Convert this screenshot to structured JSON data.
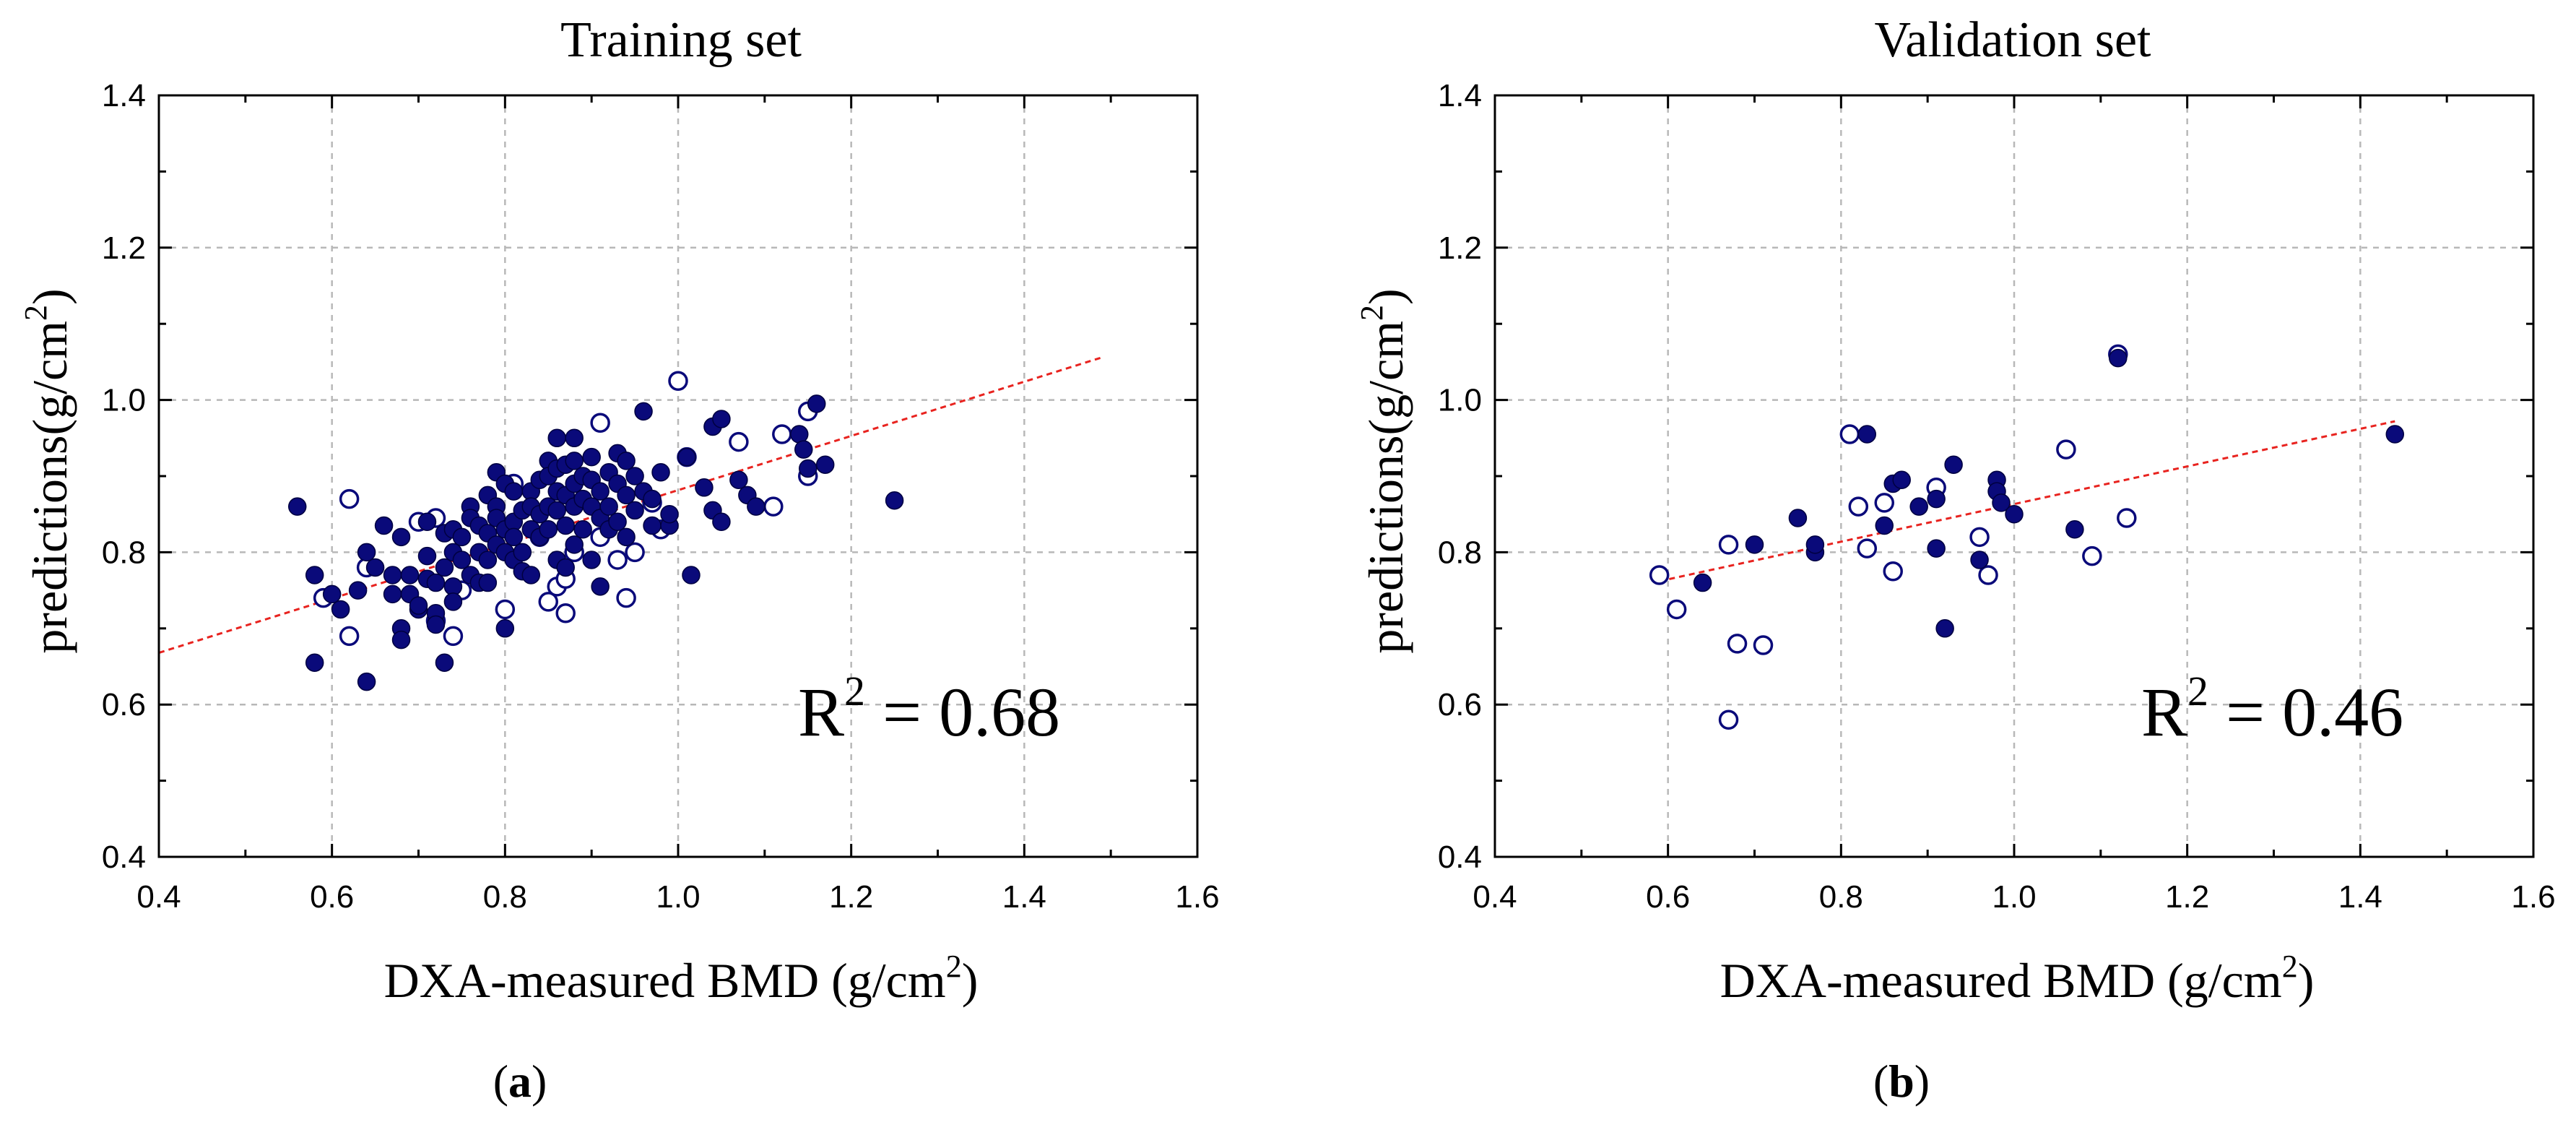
{
  "chart_data": [
    {
      "type": "scatter",
      "panel": "a",
      "title": "Training set",
      "xlabel_main": "DXA-measured BMD (g/cm",
      "xlabel_sup": "2",
      "xlabel_end": ")",
      "ylabel_main": "predictions(g/cm",
      "ylabel_sup": "2",
      "ylabel_end": ")",
      "xlim": [
        0.4,
        1.6
      ],
      "ylim": [
        0.4,
        1.4
      ],
      "xticks": [
        "0.4",
        "0.6",
        "0.8",
        "1.0",
        "1.2",
        "1.4",
        "1.6"
      ],
      "yticks": [
        "0.4",
        "0.6",
        "0.8",
        "1.0",
        "1.2",
        "1.4"
      ],
      "r2_prefix": "R",
      "r2_sup": "2",
      "r2_value": " = 0.68",
      "caption_open": "(",
      "caption_letter": "a",
      "caption_close": ")",
      "fit_line": [
        [
          0.4,
          0.668
        ],
        [
          1.49,
          1.056
        ]
      ],
      "marker_color": "#0a0a7a",
      "fit_color": "#e8231f",
      "filled": [
        [
          0.56,
          0.86
        ],
        [
          0.58,
          0.77
        ],
        [
          0.58,
          0.655
        ],
        [
          0.6,
          0.745
        ],
        [
          0.61,
          0.725
        ],
        [
          0.63,
          0.75
        ],
        [
          0.64,
          0.8
        ],
        [
          0.64,
          0.63
        ],
        [
          0.65,
          0.78
        ],
        [
          0.66,
          0.835
        ],
        [
          0.67,
          0.77
        ],
        [
          0.67,
          0.745
        ],
        [
          0.68,
          0.82
        ],
        [
          0.68,
          0.7
        ],
        [
          0.68,
          0.685
        ],
        [
          0.69,
          0.77
        ],
        [
          0.69,
          0.745
        ],
        [
          0.7,
          0.725
        ],
        [
          0.7,
          0.73
        ],
        [
          0.71,
          0.84
        ],
        [
          0.71,
          0.795
        ],
        [
          0.71,
          0.765
        ],
        [
          0.72,
          0.76
        ],
        [
          0.72,
          0.72
        ],
        [
          0.72,
          0.705
        ],
        [
          0.73,
          0.825
        ],
        [
          0.73,
          0.78
        ],
        [
          0.73,
          0.655
        ],
        [
          0.74,
          0.83
        ],
        [
          0.74,
          0.8
        ],
        [
          0.74,
          0.755
        ],
        [
          0.74,
          0.735
        ],
        [
          0.75,
          0.82
        ],
        [
          0.75,
          0.79
        ],
        [
          0.76,
          0.86
        ],
        [
          0.76,
          0.845
        ],
        [
          0.76,
          0.77
        ],
        [
          0.77,
          0.835
        ],
        [
          0.77,
          0.8
        ],
        [
          0.77,
          0.76
        ],
        [
          0.78,
          0.875
        ],
        [
          0.78,
          0.825
        ],
        [
          0.78,
          0.79
        ],
        [
          0.78,
          0.76
        ],
        [
          0.79,
          0.905
        ],
        [
          0.79,
          0.86
        ],
        [
          0.79,
          0.845
        ],
        [
          0.79,
          0.81
        ],
        [
          0.8,
          0.89
        ],
        [
          0.8,
          0.83
        ],
        [
          0.8,
          0.8
        ],
        [
          0.8,
          0.7
        ],
        [
          0.81,
          0.88
        ],
        [
          0.81,
          0.84
        ],
        [
          0.81,
          0.82
        ],
        [
          0.81,
          0.79
        ],
        [
          0.82,
          0.855
        ],
        [
          0.82,
          0.8
        ],
        [
          0.82,
          0.775
        ],
        [
          0.83,
          0.88
        ],
        [
          0.83,
          0.86
        ],
        [
          0.83,
          0.83
        ],
        [
          0.83,
          0.77
        ],
        [
          0.84,
          0.895
        ],
        [
          0.84,
          0.85
        ],
        [
          0.84,
          0.82
        ],
        [
          0.85,
          0.92
        ],
        [
          0.85,
          0.9
        ],
        [
          0.85,
          0.86
        ],
        [
          0.85,
          0.83
        ],
        [
          0.86,
          0.95
        ],
        [
          0.86,
          0.91
        ],
        [
          0.86,
          0.88
        ],
        [
          0.86,
          0.855
        ],
        [
          0.86,
          0.79
        ],
        [
          0.87,
          0.915
        ],
        [
          0.87,
          0.875
        ],
        [
          0.87,
          0.835
        ],
        [
          0.87,
          0.78
        ],
        [
          0.88,
          0.95
        ],
        [
          0.88,
          0.92
        ],
        [
          0.88,
          0.89
        ],
        [
          0.88,
          0.86
        ],
        [
          0.88,
          0.81
        ],
        [
          0.89,
          0.9
        ],
        [
          0.89,
          0.87
        ],
        [
          0.89,
          0.83
        ],
        [
          0.9,
          0.925
        ],
        [
          0.9,
          0.895
        ],
        [
          0.9,
          0.86
        ],
        [
          0.9,
          0.79
        ],
        [
          0.91,
          0.88
        ],
        [
          0.91,
          0.845
        ],
        [
          0.91,
          0.755
        ],
        [
          0.92,
          0.905
        ],
        [
          0.92,
          0.86
        ],
        [
          0.92,
          0.83
        ],
        [
          0.93,
          0.93
        ],
        [
          0.93,
          0.89
        ],
        [
          0.93,
          0.84
        ],
        [
          0.94,
          0.92
        ],
        [
          0.94,
          0.875
        ],
        [
          0.94,
          0.82
        ],
        [
          0.95,
          0.9
        ],
        [
          0.95,
          0.855
        ],
        [
          0.96,
          0.985
        ],
        [
          0.96,
          0.88
        ],
        [
          0.97,
          0.835
        ],
        [
          0.97,
          0.87
        ],
        [
          0.98,
          0.905
        ],
        [
          0.99,
          0.835
        ],
        [
          0.99,
          0.85
        ],
        [
          1.01,
          0.925
        ],
        [
          1.015,
          0.77
        ],
        [
          1.03,
          0.885
        ],
        [
          1.04,
          0.965
        ],
        [
          1.04,
          0.855
        ],
        [
          1.05,
          0.975
        ],
        [
          1.05,
          0.84
        ],
        [
          1.07,
          0.895
        ],
        [
          1.08,
          0.875
        ],
        [
          1.09,
          0.86
        ],
        [
          1.14,
          0.955
        ],
        [
          1.145,
          0.935
        ],
        [
          1.15,
          0.91
        ],
        [
          1.16,
          0.995
        ],
        [
          1.17,
          0.915
        ],
        [
          1.25,
          0.868
        ]
      ],
      "open": [
        [
          0.59,
          0.74
        ],
        [
          0.62,
          0.87
        ],
        [
          0.62,
          0.69
        ],
        [
          0.64,
          0.78
        ],
        [
          0.7,
          0.84
        ],
        [
          0.72,
          0.845
        ],
        [
          0.72,
          0.71
        ],
        [
          0.74,
          0.69
        ],
        [
          0.75,
          0.75
        ],
        [
          0.8,
          0.725
        ],
        [
          0.81,
          0.89
        ],
        [
          0.84,
          0.82
        ],
        [
          0.85,
          0.735
        ],
        [
          0.86,
          0.755
        ],
        [
          0.87,
          0.765
        ],
        [
          0.87,
          0.72
        ],
        [
          0.88,
          0.8
        ],
        [
          0.91,
          0.97
        ],
        [
          0.91,
          0.82
        ],
        [
          0.93,
          0.79
        ],
        [
          0.94,
          0.74
        ],
        [
          0.95,
          0.8
        ],
        [
          0.97,
          0.865
        ],
        [
          0.98,
          0.83
        ],
        [
          1.0,
          1.025
        ],
        [
          1.01,
          0.925
        ],
        [
          1.07,
          0.945
        ],
        [
          1.11,
          0.86
        ],
        [
          1.12,
          0.955
        ],
        [
          1.15,
          0.985
        ],
        [
          1.15,
          0.9
        ]
      ]
    },
    {
      "type": "scatter",
      "panel": "b",
      "title": "Validation set",
      "xlabel_main": "DXA-measured BMD (g/cm",
      "xlabel_sup": "2",
      "xlabel_end": ")",
      "ylabel_main": "predictions(g/cm",
      "ylabel_sup": "2",
      "ylabel_end": ")",
      "xlim": [
        0.4,
        1.6
      ],
      "ylim": [
        0.4,
        1.4
      ],
      "xticks": [
        "0.4",
        "0.6",
        "0.8",
        "1.0",
        "1.2",
        "1.4",
        "1.6"
      ],
      "yticks": [
        "0.4",
        "0.6",
        "0.8",
        "1.0",
        "1.2",
        "1.4"
      ],
      "r2_prefix": "R",
      "r2_sup": "2",
      "r2_value": " = 0.46",
      "caption_open": "(",
      "caption_letter": "b",
      "caption_close": ")",
      "fit_line": [
        [
          0.59,
          0.762
        ],
        [
          1.44,
          0.972
        ]
      ],
      "marker_color": "#0a0a7a",
      "fit_color": "#e8231f",
      "filled": [
        [
          0.64,
          0.76
        ],
        [
          0.7,
          0.81
        ],
        [
          0.75,
          0.845
        ],
        [
          0.77,
          0.8
        ],
        [
          0.77,
          0.81
        ],
        [
          0.83,
          0.955
        ],
        [
          0.85,
          0.835
        ],
        [
          0.86,
          0.89
        ],
        [
          0.87,
          0.895
        ],
        [
          0.89,
          0.86
        ],
        [
          0.91,
          0.87
        ],
        [
          0.91,
          0.805
        ],
        [
          0.92,
          0.7
        ],
        [
          0.93,
          0.915
        ],
        [
          0.96,
          0.79
        ],
        [
          0.98,
          0.895
        ],
        [
          0.98,
          0.88
        ],
        [
          0.985,
          0.865
        ],
        [
          1.0,
          0.85
        ],
        [
          1.07,
          0.83
        ],
        [
          1.12,
          1.055
        ],
        [
          1.44,
          0.955
        ]
      ],
      "open": [
        [
          0.59,
          0.77
        ],
        [
          0.61,
          0.725
        ],
        [
          0.67,
          0.81
        ],
        [
          0.67,
          0.58
        ],
        [
          0.68,
          0.68
        ],
        [
          0.71,
          0.678
        ],
        [
          0.81,
          0.955
        ],
        [
          0.82,
          0.86
        ],
        [
          0.83,
          0.805
        ],
        [
          0.85,
          0.865
        ],
        [
          0.86,
          0.775
        ],
        [
          0.91,
          0.885
        ],
        [
          0.96,
          0.82
        ],
        [
          0.97,
          0.77
        ],
        [
          1.06,
          0.935
        ],
        [
          1.09,
          0.795
        ],
        [
          1.12,
          1.06
        ],
        [
          1.13,
          0.845
        ]
      ]
    }
  ]
}
